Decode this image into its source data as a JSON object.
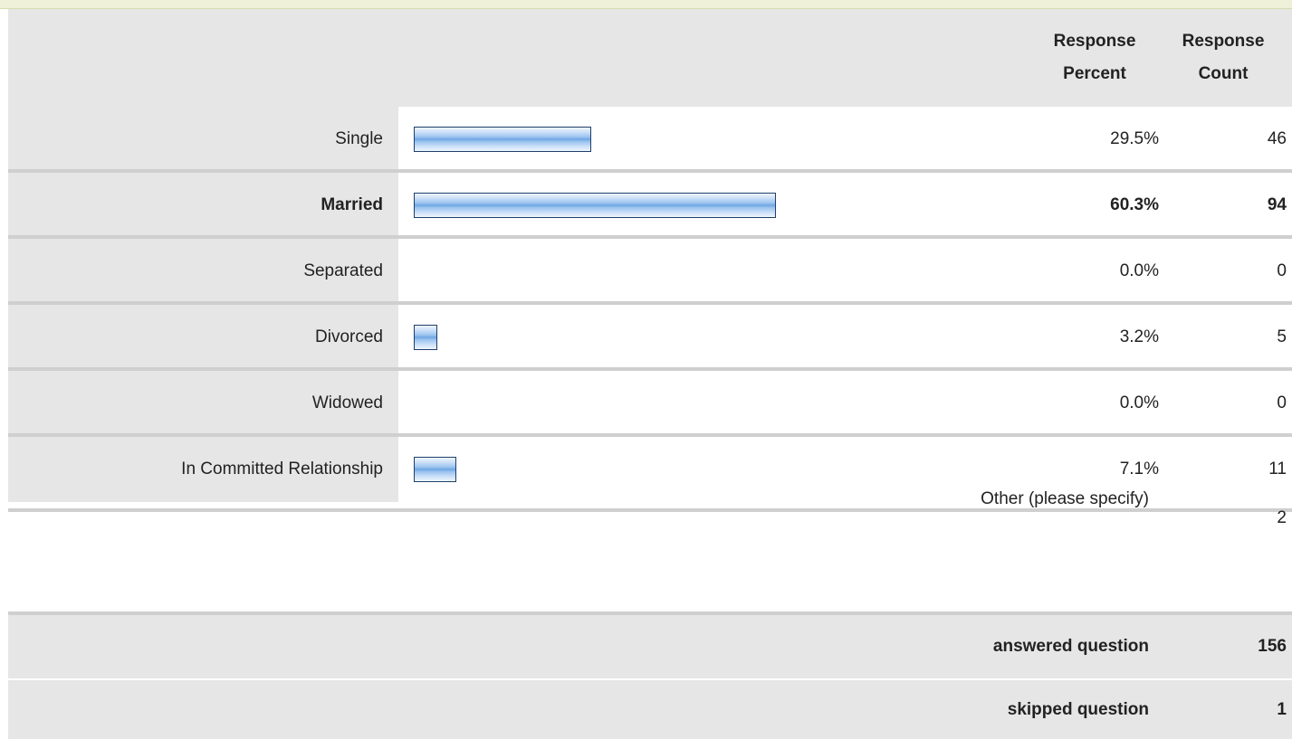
{
  "header": {
    "percent_label_1": "Response",
    "percent_label_2": "Percent",
    "count_label_1": "Response",
    "count_label_2": "Count"
  },
  "chart_data": {
    "type": "bar",
    "categories": [
      "Single",
      "Married",
      "Separated",
      "Divorced",
      "Widowed",
      "In Committed Relationship"
    ],
    "percent_labels": [
      "29.5%",
      "60.3%",
      "0.0%",
      "3.2%",
      "0.0%",
      "7.1%"
    ],
    "values": [
      29.5,
      60.3,
      0.0,
      3.2,
      0.0,
      7.1
    ],
    "counts": [
      46,
      94,
      0,
      5,
      0,
      11
    ],
    "highlight_index": 1,
    "bar_color": "#8ab6ea",
    "bar_border": "#1f3f6b"
  },
  "other": {
    "label": "Other (please specify)",
    "count": "2"
  },
  "summary": {
    "answered_label": "answered question",
    "answered_value": "156",
    "skipped_label": "skipped question",
    "skipped_value": "1"
  }
}
